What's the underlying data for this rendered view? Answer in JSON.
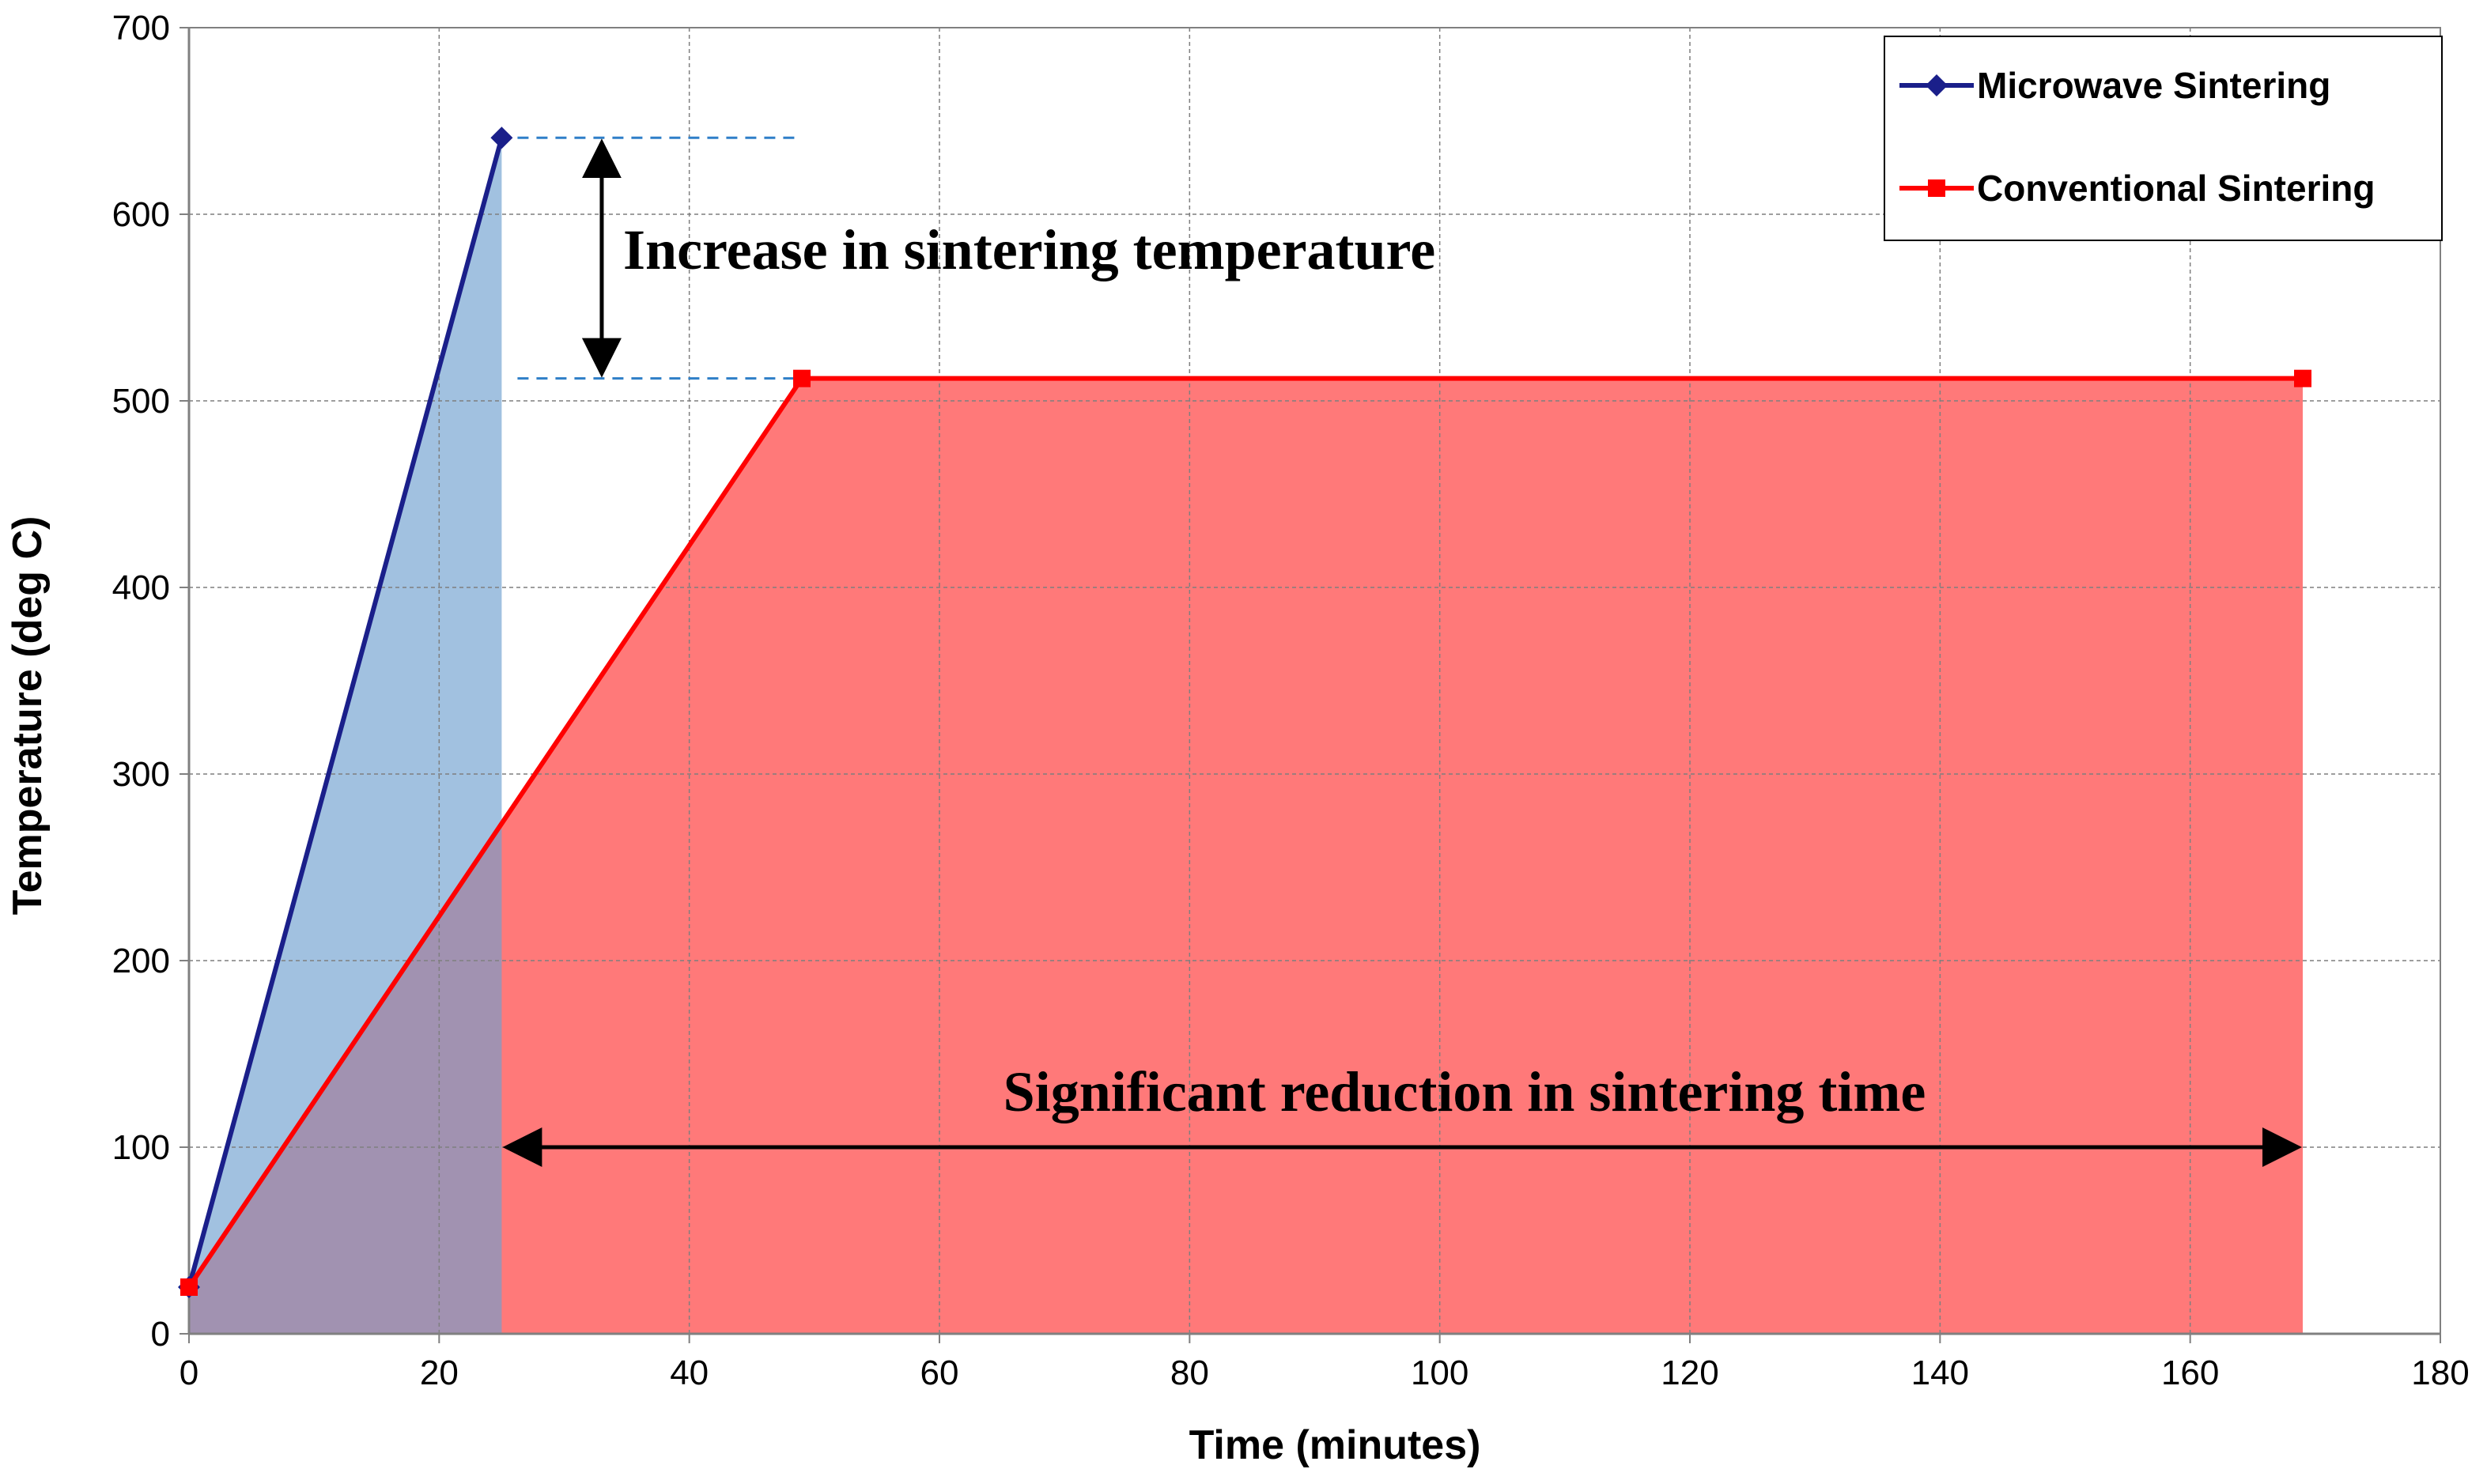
{
  "chart_data": {
    "type": "line",
    "title": "",
    "xlabel": "Time (minutes)",
    "ylabel": "Temperature (deg C)",
    "xlim": [
      0,
      180
    ],
    "ylim": [
      0,
      700
    ],
    "xticks": [
      0,
      20,
      40,
      60,
      80,
      100,
      120,
      140,
      160,
      180
    ],
    "yticks": [
      0,
      100,
      200,
      300,
      400,
      500,
      600,
      700
    ],
    "grid": true,
    "legend_position": "top-right",
    "series": [
      {
        "name": "Microwave Sintering",
        "color": "#1a1f8a",
        "fill_color": "#6f9fd0",
        "marker": "diamond",
        "x": [
          0,
          25
        ],
        "y": [
          25,
          641
        ]
      },
      {
        "name": "Conventional Sintering",
        "color": "#ff0000",
        "fill_color": "#ff4040",
        "marker": "square",
        "x": [
          0,
          49,
          169
        ],
        "y": [
          25,
          512,
          512
        ]
      }
    ],
    "annotations": [
      {
        "text": "Increase in sintering temperature",
        "kind": "vertical-double-arrow",
        "x": 33,
        "y_from": 512,
        "y_to": 641
      },
      {
        "text": "Significant reduction in sintering time",
        "kind": "horizontal-double-arrow",
        "y": 100,
        "x_from": 25,
        "x_to": 169
      }
    ],
    "reference_lines": [
      {
        "y": 641,
        "x_from": 25,
        "x_to": 49,
        "style": "dashed"
      },
      {
        "y": 512,
        "x_from": 25,
        "x_to": 49,
        "style": "dashed"
      }
    ]
  }
}
